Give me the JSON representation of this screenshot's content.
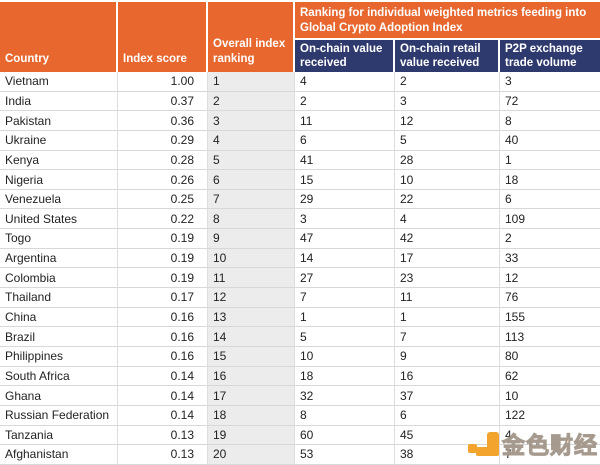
{
  "header": {
    "country": "Country",
    "index_score": "Index score",
    "overall_ranking": "Overall index ranking",
    "metrics_group": "Ranking for individual weighted metrics feeding into Global Crypto Adoption Index",
    "metric_columns": [
      "On-chain value received",
      "On-chain retail value received",
      "P2P exchange trade volume"
    ]
  },
  "rows": [
    {
      "country": "Vietnam",
      "score": "1.00",
      "rank": "1",
      "onchain_value": "4",
      "onchain_retail": "2",
      "p2p": "3"
    },
    {
      "country": "India",
      "score": "0.37",
      "rank": "2",
      "onchain_value": "2",
      "onchain_retail": "3",
      "p2p": "72"
    },
    {
      "country": "Pakistan",
      "score": "0.36",
      "rank": "3",
      "onchain_value": "11",
      "onchain_retail": "12",
      "p2p": "8"
    },
    {
      "country": "Ukraine",
      "score": "0.29",
      "rank": "4",
      "onchain_value": "6",
      "onchain_retail": "5",
      "p2p": "40"
    },
    {
      "country": "Kenya",
      "score": "0.28",
      "rank": "5",
      "onchain_value": "41",
      "onchain_retail": "28",
      "p2p": "1"
    },
    {
      "country": "Nigeria",
      "score": "0.26",
      "rank": "6",
      "onchain_value": "15",
      "onchain_retail": "10",
      "p2p": "18"
    },
    {
      "country": "Venezuela",
      "score": "0.25",
      "rank": "7",
      "onchain_value": "29",
      "onchain_retail": "22",
      "p2p": "6"
    },
    {
      "country": "United States",
      "score": "0.22",
      "rank": "8",
      "onchain_value": "3",
      "onchain_retail": "4",
      "p2p": "109"
    },
    {
      "country": "Togo",
      "score": "0.19",
      "rank": "9",
      "onchain_value": "47",
      "onchain_retail": "42",
      "p2p": "2"
    },
    {
      "country": "Argentina",
      "score": "0.19",
      "rank": "10",
      "onchain_value": "14",
      "onchain_retail": "17",
      "p2p": "33"
    },
    {
      "country": "Colombia",
      "score": "0.19",
      "rank": "11",
      "onchain_value": "27",
      "onchain_retail": "23",
      "p2p": "12"
    },
    {
      "country": "Thailand",
      "score": "0.17",
      "rank": "12",
      "onchain_value": "7",
      "onchain_retail": "11",
      "p2p": "76"
    },
    {
      "country": "China",
      "score": "0.16",
      "rank": "13",
      "onchain_value": "1",
      "onchain_retail": "1",
      "p2p": "155"
    },
    {
      "country": "Brazil",
      "score": "0.16",
      "rank": "14",
      "onchain_value": "5",
      "onchain_retail": "7",
      "p2p": "113"
    },
    {
      "country": "Philippines",
      "score": "0.16",
      "rank": "15",
      "onchain_value": "10",
      "onchain_retail": "9",
      "p2p": "80"
    },
    {
      "country": "South Africa",
      "score": "0.14",
      "rank": "16",
      "onchain_value": "18",
      "onchain_retail": "16",
      "p2p": "62"
    },
    {
      "country": "Ghana",
      "score": "0.14",
      "rank": "17",
      "onchain_value": "32",
      "onchain_retail": "37",
      "p2p": "10"
    },
    {
      "country": "Russian Federation",
      "score": "0.14",
      "rank": "18",
      "onchain_value": "8",
      "onchain_retail": "6",
      "p2p": "122"
    },
    {
      "country": "Tanzania",
      "score": "0.13",
      "rank": "19",
      "onchain_value": "60",
      "onchain_retail": "45",
      "p2p": "4"
    },
    {
      "country": "Afghanistan",
      "score": "0.13",
      "rank": "20",
      "onchain_value": "53",
      "onchain_retail": "38",
      "p2p": "7"
    }
  ],
  "watermark": {
    "text": "金色财经"
  },
  "colors": {
    "header_orange": "#E7672F",
    "header_navy": "#2E3A6E",
    "ranking_column_bg": "#ECECEC",
    "watermark_amber": "#F2A42C"
  },
  "chart_data": {
    "type": "table",
    "title": "Global Crypto Adoption Index",
    "group_header": "Ranking for individual weighted metrics feeding into Global Crypto Adoption Index",
    "columns": [
      "Country",
      "Index score",
      "Overall index ranking",
      "On-chain value received",
      "On-chain retail value received",
      "P2P exchange trade volume"
    ],
    "rows": [
      [
        "Vietnam",
        1.0,
        1,
        4,
        2,
        3
      ],
      [
        "India",
        0.37,
        2,
        2,
        3,
        72
      ],
      [
        "Pakistan",
        0.36,
        3,
        11,
        12,
        8
      ],
      [
        "Ukraine",
        0.29,
        4,
        6,
        5,
        40
      ],
      [
        "Kenya",
        0.28,
        5,
        41,
        28,
        1
      ],
      [
        "Nigeria",
        0.26,
        6,
        15,
        10,
        18
      ],
      [
        "Venezuela",
        0.25,
        7,
        29,
        22,
        6
      ],
      [
        "United States",
        0.22,
        8,
        3,
        4,
        109
      ],
      [
        "Togo",
        0.19,
        9,
        47,
        42,
        2
      ],
      [
        "Argentina",
        0.19,
        10,
        14,
        17,
        33
      ],
      [
        "Colombia",
        0.19,
        11,
        27,
        23,
        12
      ],
      [
        "Thailand",
        0.17,
        12,
        7,
        11,
        76
      ],
      [
        "China",
        0.16,
        13,
        1,
        1,
        155
      ],
      [
        "Brazil",
        0.16,
        14,
        5,
        7,
        113
      ],
      [
        "Philippines",
        0.16,
        15,
        10,
        9,
        80
      ],
      [
        "South Africa",
        0.14,
        16,
        18,
        16,
        62
      ],
      [
        "Ghana",
        0.14,
        17,
        32,
        37,
        10
      ],
      [
        "Russian Federation",
        0.14,
        18,
        8,
        6,
        122
      ],
      [
        "Tanzania",
        0.13,
        19,
        60,
        45,
        4
      ],
      [
        "Afghanistan",
        0.13,
        20,
        53,
        38,
        7
      ]
    ]
  }
}
